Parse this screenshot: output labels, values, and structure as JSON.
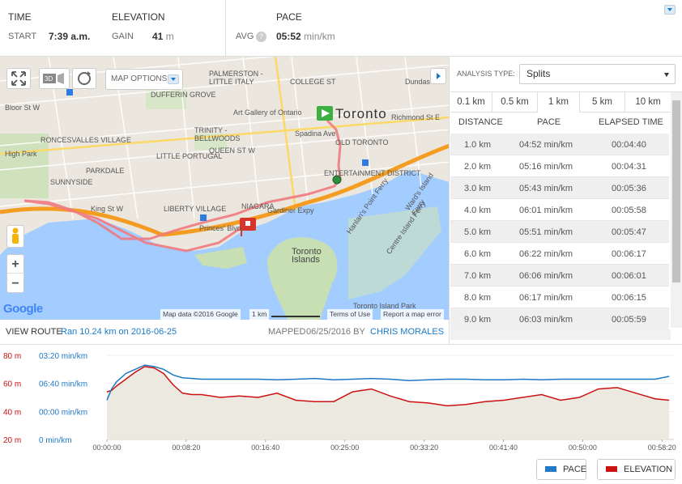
{
  "header": {
    "time_label": "TIME",
    "start_label": "START",
    "start_value": "7:39 a.m.",
    "elevation_label": "ELEVATION",
    "gain_label": "GAIN",
    "gain_value": "41",
    "gain_unit": "m",
    "pace_label": "PACE",
    "avg_label": "AVG",
    "help_glyph": "?",
    "avg_value": "05:52",
    "avg_unit": "min/km"
  },
  "map": {
    "options_label": "MAP OPTIONS",
    "labels": [
      {
        "text": "PALMERSTON - LITTLE ITALY",
        "cls": ""
      },
      {
        "text": "COLLEGE ST",
        "cls": ""
      },
      {
        "text": "Art Gallery of Ontario",
        "cls": "n"
      },
      {
        "text": "Toronto",
        "cls": "n"
      },
      {
        "text": "OLD TORONTO",
        "cls": ""
      },
      {
        "text": "ENTERTAINMENT DISTRICT",
        "cls": ""
      },
      {
        "text": "QUEEN ST W",
        "cls": ""
      },
      {
        "text": "RONCESVALLES VILLAGE",
        "cls": ""
      },
      {
        "text": "LITTLE PORTUGAL",
        "cls": ""
      },
      {
        "text": "TRINITY - BELLWOODS",
        "cls": ""
      },
      {
        "text": "PARKDALE",
        "cls": ""
      },
      {
        "text": "SUNNYSIDE",
        "cls": ""
      },
      {
        "text": "LIBERTY VILLAGE",
        "cls": ""
      },
      {
        "text": "NIAGARA",
        "cls": ""
      },
      {
        "text": "Gardiner Expy",
        "cls": "n"
      },
      {
        "text": "King St W",
        "cls": "n"
      },
      {
        "text": "Princes' Blvd",
        "cls": "n"
      },
      {
        "text": "Toronto Islands",
        "cls": "n"
      },
      {
        "text": "Hanlan's Point Ferry",
        "cls": "n"
      },
      {
        "text": "Ward's Island Ferry",
        "cls": "n"
      },
      {
        "text": "Centre Island Ferry",
        "cls": "n"
      },
      {
        "text": "Dundas",
        "cls": "n"
      },
      {
        "text": "Richmond St E",
        "cls": "n"
      },
      {
        "text": "Bloor St W",
        "cls": "n"
      },
      {
        "text": "High Park",
        "cls": "n"
      },
      {
        "text": "DUFFERIN GROVE",
        "cls": ""
      },
      {
        "text": "Spadina Ave",
        "cls": "n"
      },
      {
        "text": "Toronto Island Park",
        "cls": "n"
      }
    ],
    "attribution": "Map data ©2016 Google",
    "scale": "1 km",
    "terms": "Terms of Use",
    "report": "Report a map error",
    "google_logo": "Google",
    "zoom_in": "+",
    "zoom_out": "−"
  },
  "route": {
    "view_route": "VIEW ROUTE",
    "run_link": "Ran 10.24 km on 2016-06-25",
    "mapped_label": "MAPPED",
    "mapped_date": "06/25/2016 BY",
    "author": "CHRIS MORALES"
  },
  "analysis": {
    "type_label": "ANALYSIS TYPE:",
    "type_value": "Splits",
    "tabs": [
      "0.1 km",
      "0.5 km",
      "1 km",
      "5 km",
      "10 km"
    ],
    "active_tab": "1 km",
    "columns": [
      "DISTANCE",
      "PACE",
      "ELAPSED TIME"
    ],
    "rows": [
      [
        "1.0 km",
        "04:52 min/km",
        "00:04:40"
      ],
      [
        "2.0 km",
        "05:16 min/km",
        "00:04:31"
      ],
      [
        "3.0 km",
        "05:43 min/km",
        "00:05:36"
      ],
      [
        "4.0 km",
        "06:01 min/km",
        "00:05:58"
      ],
      [
        "5.0 km",
        "05:51 min/km",
        "00:05:47"
      ],
      [
        "6.0 km",
        "06:22 min/km",
        "00:06:17"
      ],
      [
        "7.0 km",
        "06:06 min/km",
        "00:06:01"
      ],
      [
        "8.0 km",
        "06:17 min/km",
        "00:06:15"
      ],
      [
        "9.0 km",
        "06:03 min/km",
        "00:05:59"
      ]
    ]
  },
  "chart_data": {
    "type": "line",
    "x_ticks": [
      "00:00:00",
      "00:08:20",
      "00:16:40",
      "00:25:00",
      "00:33:20",
      "00:41:40",
      "00:50:00",
      "00:58:20"
    ],
    "elevation_ticks": [
      "80 m",
      "60 m",
      "40 m",
      "20 m"
    ],
    "pace_ticks": [
      "03:20 min/km",
      "06:40 min/km",
      "00:00 min/km",
      "0 min/km"
    ],
    "x_minutes": [
      0,
      0.5,
      1,
      2,
      3,
      4,
      5,
      6,
      7,
      8,
      9,
      10,
      12,
      14,
      16,
      18,
      20,
      22,
      24,
      26,
      28,
      30,
      32,
      34,
      36,
      38,
      40,
      42,
      44,
      46,
      48,
      50,
      52,
      54,
      56,
      58,
      59.5
    ],
    "series": [
      {
        "name": "PACE",
        "color": "#1f78c8",
        "values": [
          48,
          56,
          61,
          67,
          70,
          73,
          72,
          70,
          66,
          64,
          63.5,
          63,
          63,
          63,
          63,
          62.5,
          63,
          63.5,
          62.5,
          63,
          63.5,
          63,
          62,
          62.5,
          63,
          63,
          62.5,
          62.5,
          63,
          62.5,
          63,
          63,
          63,
          63,
          63,
          63,
          65
        ]
      },
      {
        "name": "ELEVATION",
        "color": "#cc1111",
        "values": [
          54,
          55,
          58,
          63,
          68,
          72,
          71,
          67,
          59,
          53,
          52,
          52,
          50,
          51,
          50,
          53,
          48,
          47,
          47,
          54,
          56,
          51,
          47,
          46,
          44,
          45,
          47,
          48,
          50,
          52,
          48,
          50,
          56,
          57,
          53,
          49,
          48
        ]
      }
    ],
    "ylim": [
      20,
      80
    ],
    "legend": [
      "PACE",
      "ELEVATION"
    ]
  }
}
